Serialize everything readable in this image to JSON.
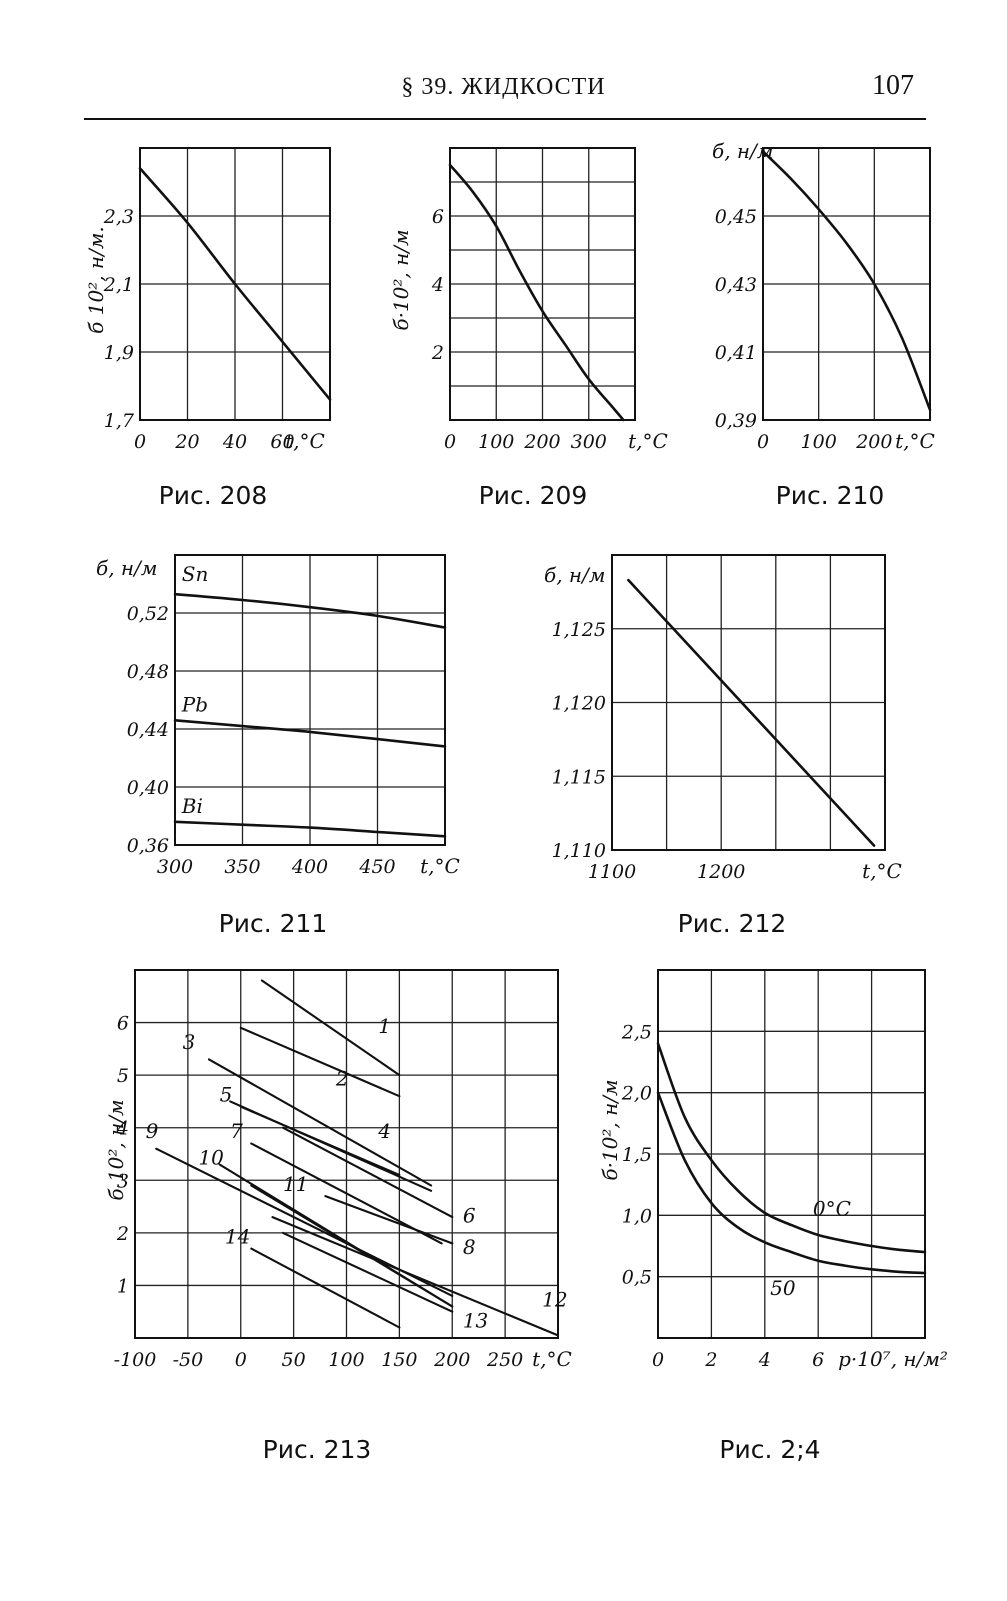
{
  "header": {
    "title": "§ 39. ЖИДКОСТИ",
    "page_number": "107"
  },
  "chart_data": [
    {
      "id": "fig208",
      "type": "line",
      "caption": "Рис. 208",
      "xlabel": "t,°C",
      "ylabel": "б 10², н/м.",
      "xlim": [
        0,
        80
      ],
      "ylim": [
        1.7,
        2.5
      ],
      "xticks": [
        0,
        20,
        40,
        60
      ],
      "xtick_labels": [
        "0",
        "20",
        "40",
        "60"
      ],
      "yticks": [
        1.7,
        1.9,
        2.1,
        2.3
      ],
      "ytick_labels": [
        "1,7",
        "1,9",
        "2,1",
        "2,3"
      ],
      "xgrid": [
        0,
        20,
        40,
        60,
        80
      ],
      "ygrid": [
        1.7,
        1.9,
        2.1,
        2.3,
        2.5
      ],
      "series": [
        {
          "x": [
            0,
            20,
            40,
            60,
            80
          ],
          "y": [
            2.44,
            2.28,
            2.1,
            1.93,
            1.76
          ]
        }
      ]
    },
    {
      "id": "fig209",
      "type": "line",
      "caption": "Рис. 209",
      "xlabel": "t,°C",
      "ylabel": "б·10², н/м",
      "xlim": [
        0,
        400
      ],
      "ylim": [
        0,
        8
      ],
      "xticks": [
        0,
        100,
        200,
        300
      ],
      "xtick_labels": [
        "0",
        "100",
        "200",
        "300"
      ],
      "yticks": [
        2,
        4,
        6
      ],
      "ytick_labels": [
        "2",
        "4",
        "6"
      ],
      "xgrid": [
        0,
        100,
        200,
        300,
        400
      ],
      "ygrid": [
        0,
        1,
        2,
        3,
        4,
        5,
        6,
        7,
        8
      ],
      "series": [
        {
          "x": [
            0,
            50,
            100,
            150,
            200,
            250,
            300,
            350,
            375
          ],
          "y": [
            7.5,
            6.7,
            5.7,
            4.4,
            3.2,
            2.2,
            1.2,
            0.4,
            0.0
          ]
        }
      ]
    },
    {
      "id": "fig210",
      "type": "line",
      "caption": "Рис. 210",
      "xlabel": "t,°C",
      "ylabel": "б, н/м",
      "xlim": [
        0,
        300
      ],
      "ylim": [
        0.39,
        0.47
      ],
      "xticks": [
        0,
        100,
        200
      ],
      "xtick_labels": [
        "0",
        "100",
        "200"
      ],
      "yticks": [
        0.39,
        0.41,
        0.43,
        0.45
      ],
      "ytick_labels": [
        "0,39",
        "0,41",
        "0,43",
        "0,45"
      ],
      "xgrid": [
        0,
        100,
        200,
        300
      ],
      "ygrid": [
        0.39,
        0.41,
        0.43,
        0.45,
        0.47
      ],
      "series": [
        {
          "x": [
            0,
            50,
            100,
            150,
            200,
            250,
            300
          ],
          "y": [
            0.469,
            0.461,
            0.452,
            0.442,
            0.43,
            0.414,
            0.393
          ]
        }
      ]
    },
    {
      "id": "fig211",
      "type": "line",
      "caption": "Рис. 211",
      "xlabel": "t,°C",
      "ylabel": "б, н/м",
      "xlim": [
        300,
        500
      ],
      "ylim": [
        0.36,
        0.56
      ],
      "xticks": [
        300,
        350,
        400,
        450
      ],
      "xtick_labels": [
        "300",
        "350",
        "400",
        "450"
      ],
      "yticks": [
        0.36,
        0.4,
        0.44,
        0.48,
        0.52
      ],
      "ytick_labels": [
        "0,36",
        "0,40",
        "0,44",
        "0,48",
        "0,52"
      ],
      "xgrid": [
        300,
        350,
        400,
        450,
        500
      ],
      "ygrid": [
        0.36,
        0.4,
        0.44,
        0.48,
        0.52,
        0.56
      ],
      "series": [
        {
          "name": "Sn",
          "x": [
            300,
            350,
            400,
            450,
            500
          ],
          "y": [
            0.533,
            0.529,
            0.524,
            0.518,
            0.51
          ]
        },
        {
          "name": "Pb",
          "x": [
            300,
            350,
            400,
            450,
            500
          ],
          "y": [
            0.446,
            0.442,
            0.438,
            0.433,
            0.428
          ]
        },
        {
          "name": "Bi",
          "x": [
            300,
            350,
            400,
            450,
            500
          ],
          "y": [
            0.376,
            0.374,
            0.372,
            0.369,
            0.366
          ]
        }
      ]
    },
    {
      "id": "fig212",
      "type": "line",
      "caption": "Рис. 212",
      "xlabel": "t,°C",
      "ylabel": "б, н/м",
      "xlim": [
        1100,
        1350
      ],
      "ylim": [
        1.11,
        1.13
      ],
      "xticks": [
        1100,
        1200
      ],
      "xtick_labels": [
        "1100",
        "1200"
      ],
      "yticks": [
        1.11,
        1.115,
        1.12,
        1.125
      ],
      "ytick_labels": [
        "1,110",
        "1,115",
        "1,120",
        "1,125"
      ],
      "xgrid": [
        1100,
        1150,
        1200,
        1250,
        1300,
        1350
      ],
      "ygrid": [
        1.11,
        1.115,
        1.12,
        1.125,
        1.13
      ],
      "series": [
        {
          "x": [
            1115,
            1340
          ],
          "y": [
            1.1283,
            1.1103
          ]
        }
      ]
    },
    {
      "id": "fig213",
      "type": "line",
      "caption": "Рис. 213",
      "xlabel": "t,°C",
      "ylabel": "б 10², н/м",
      "xlim": [
        -100,
        300
      ],
      "ylim": [
        0,
        7
      ],
      "xticks": [
        -100,
        -50,
        0,
        50,
        100,
        150,
        200,
        250
      ],
      "xtick_labels": [
        "-100",
        "-50",
        "0",
        "50",
        "100",
        "150",
        "200",
        "250"
      ],
      "yticks": [
        1,
        2,
        3,
        4,
        5,
        6
      ],
      "ytick_labels": [
        "1",
        "2",
        "3",
        "4",
        "5",
        "6"
      ],
      "xgrid": [
        -100,
        -50,
        0,
        50,
        100,
        150,
        200,
        250,
        300
      ],
      "ygrid": [
        0,
        1,
        2,
        3,
        4,
        5,
        6,
        7
      ],
      "series": [
        {
          "name": "1",
          "x": [
            20,
            150
          ],
          "y": [
            6.8,
            5.0
          ]
        },
        {
          "name": "2",
          "x": [
            0,
            150
          ],
          "y": [
            5.9,
            4.6
          ]
        },
        {
          "name": "3",
          "x": [
            -30,
            180
          ],
          "y": [
            5.3,
            2.9
          ]
        },
        {
          "name": "4",
          "x": [
            -10,
            180
          ],
          "y": [
            4.5,
            2.8
          ]
        },
        {
          "name": "5",
          "x": [
            0,
            150
          ],
          "y": [
            4.4,
            3.1
          ]
        },
        {
          "name": "6",
          "x": [
            40,
            200
          ],
          "y": [
            4.0,
            2.3
          ]
        },
        {
          "name": "7",
          "x": [
            10,
            190
          ],
          "y": [
            3.7,
            1.8
          ]
        },
        {
          "name": "8",
          "x": [
            80,
            200
          ],
          "y": [
            2.7,
            1.8
          ]
        },
        {
          "name": "9",
          "x": [
            -80,
            200
          ],
          "y": [
            3.6,
            0.8
          ]
        },
        {
          "name": "10",
          "x": [
            -20,
            200
          ],
          "y": [
            3.3,
            0.6
          ]
        },
        {
          "name": "11",
          "x": [
            10,
            200
          ],
          "y": [
            2.9,
            0.6
          ]
        },
        {
          "name": "12",
          "x": [
            30,
            300
          ],
          "y": [
            2.3,
            0.05
          ]
        },
        {
          "name": "13",
          "x": [
            40,
            200
          ],
          "y": [
            2.0,
            0.5
          ]
        },
        {
          "name": "14",
          "x": [
            10,
            150
          ],
          "y": [
            1.7,
            0.2
          ]
        }
      ]
    },
    {
      "id": "fig214",
      "type": "line",
      "caption": "Рис. 2;4",
      "xlabel": "р·10⁷, н/м²",
      "ylabel": "б·10², н/м",
      "xlim": [
        0,
        10
      ],
      "ylim": [
        0,
        3.0
      ],
      "xticks": [
        0,
        2,
        4,
        6
      ],
      "xtick_labels": [
        "0",
        "2",
        "4",
        "6"
      ],
      "yticks": [
        0.5,
        1.0,
        1.5,
        2.0,
        2.5
      ],
      "ytick_labels": [
        "0,5",
        "1,0",
        "1,5",
        "2,0",
        "2,5"
      ],
      "xgrid": [
        0,
        2,
        4,
        6,
        8,
        10
      ],
      "ygrid": [
        0,
        0.5,
        1.0,
        1.5,
        2.0,
        2.5,
        3.0
      ],
      "series": [
        {
          "name": "0°C",
          "x": [
            0,
            1,
            2,
            3,
            4,
            5,
            6,
            7,
            8,
            9,
            10
          ],
          "y": [
            2.4,
            1.8,
            1.45,
            1.2,
            1.02,
            0.92,
            0.84,
            0.79,
            0.75,
            0.72,
            0.7
          ]
        },
        {
          "name": "50",
          "x": [
            0,
            1,
            2,
            3,
            4,
            5,
            6,
            7,
            8,
            9,
            10
          ],
          "y": [
            2.0,
            1.45,
            1.1,
            0.9,
            0.78,
            0.7,
            0.63,
            0.59,
            0.56,
            0.54,
            0.53
          ]
        }
      ]
    }
  ]
}
